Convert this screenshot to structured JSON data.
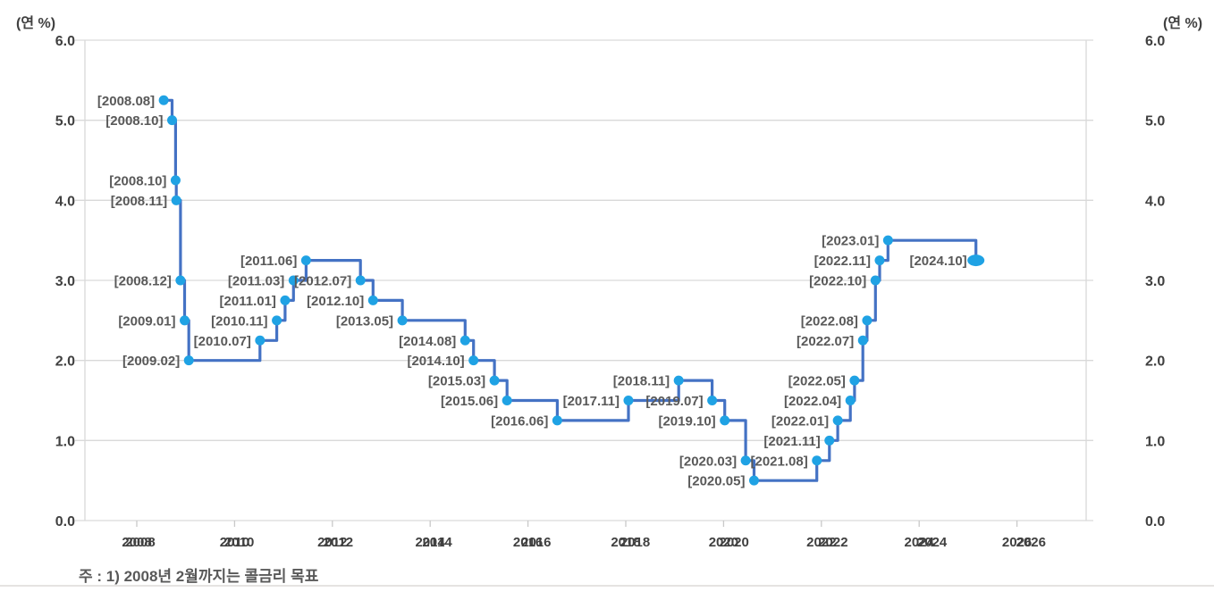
{
  "chart_data": {
    "type": "line",
    "subtype": "step",
    "title": "",
    "unit_label_left": "(연 %)",
    "unit_label_right": "(연 %)",
    "note": "주 : 1) 2008년 2월까지는 콜금리 목표",
    "ylim": [
      0.0,
      6.0
    ],
    "y_ticks": [
      "0.0",
      "1.0",
      "2.0",
      "3.0",
      "4.0",
      "5.0",
      "6.0"
    ],
    "x_ticks": [
      "2008",
      "2010",
      "2012",
      "2014",
      "2016",
      "2018",
      "2020",
      "2022",
      "2024",
      "2026"
    ],
    "x_labels_doubled": true,
    "grid": true,
    "legend": "none",
    "points": [
      {
        "date": "2008.08",
        "label": "[2008.08]",
        "value": 5.25
      },
      {
        "date": "2008.10",
        "label": "[2008.10]",
        "value": 5.0
      },
      {
        "date": "2008.10",
        "label": "[2008.10]",
        "value": 4.25
      },
      {
        "date": "2008.11",
        "label": "[2008.11]",
        "value": 4.0
      },
      {
        "date": "2008.12",
        "label": "[2008.12]",
        "value": 3.0
      },
      {
        "date": "2009.01",
        "label": "[2009.01]",
        "value": 2.5
      },
      {
        "date": "2009.02",
        "label": "[2009.02]",
        "value": 2.0
      },
      {
        "date": "2010.07",
        "label": "[2010.07]",
        "value": 2.25
      },
      {
        "date": "2010.11",
        "label": "[2010.11]",
        "value": 2.5
      },
      {
        "date": "2011.01",
        "label": "[2011.01]",
        "value": 2.75
      },
      {
        "date": "2011.03",
        "label": "[2011.03]",
        "value": 3.0
      },
      {
        "date": "2011.06",
        "label": "[2011.06]",
        "value": 3.25
      },
      {
        "date": "2012.07",
        "label": "[2012.07]",
        "value": 3.0
      },
      {
        "date": "2012.10",
        "label": "[2012.10]",
        "value": 2.75
      },
      {
        "date": "2013.05",
        "label": "[2013.05]",
        "value": 2.5
      },
      {
        "date": "2014.08",
        "label": "[2014.08]",
        "value": 2.25
      },
      {
        "date": "2014.10",
        "label": "[2014.10]",
        "value": 2.0
      },
      {
        "date": "2015.03",
        "label": "[2015.03]",
        "value": 1.75
      },
      {
        "date": "2015.06",
        "label": "[2015.06]",
        "value": 1.5
      },
      {
        "date": "2016.06",
        "label": "[2016.06]",
        "value": 1.25
      },
      {
        "date": "2017.11",
        "label": "[2017.11]",
        "value": 1.5
      },
      {
        "date": "2018.11",
        "label": "[2018.11]",
        "value": 1.75
      },
      {
        "date": "2019.07",
        "label": "[2019.07]",
        "value": 1.5
      },
      {
        "date": "2019.10",
        "label": "[2019.10]",
        "value": 1.25
      },
      {
        "date": "2020.03",
        "label": "[2020.03]",
        "value": 0.75
      },
      {
        "date": "2020.05",
        "label": "[2020.05]",
        "value": 0.5
      },
      {
        "date": "2021.08",
        "label": "[2021.08]",
        "value": 0.75
      },
      {
        "date": "2021.11",
        "label": "[2021.11]",
        "value": 1.0
      },
      {
        "date": "2022.01",
        "label": "[2022.01]",
        "value": 1.25
      },
      {
        "date": "2022.04",
        "label": "[2022.04]",
        "value": 1.5
      },
      {
        "date": "2022.05",
        "label": "[2022.05]",
        "value": 1.75
      },
      {
        "date": "2022.07",
        "label": "[2022.07]",
        "value": 2.25
      },
      {
        "date": "2022.08",
        "label": "[2022.08]",
        "value": 2.5
      },
      {
        "date": "2022.10",
        "label": "[2022.10]",
        "value": 3.0
      },
      {
        "date": "2022.11",
        "label": "[2022.11]",
        "value": 3.25
      },
      {
        "date": "2023.01",
        "label": "[2023.01]",
        "value": 3.5
      },
      {
        "date": "2024.10",
        "label": "[2024.10]",
        "value": 3.25
      }
    ],
    "colors": {
      "line": "#4472C4",
      "marker": "#1FA2E4",
      "grid": "#D9D9D9",
      "tick": "#C9C9C9",
      "axis_text": "#404040",
      "point_label": "#595959"
    }
  }
}
